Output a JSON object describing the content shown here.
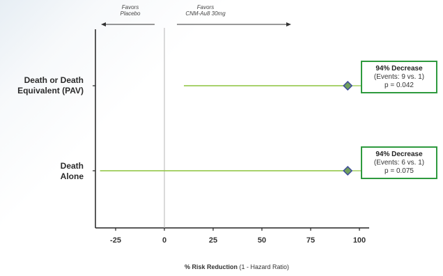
{
  "chart_data": {
    "type": "scatter",
    "title": "",
    "xlabel_bold": "% Risk Reduction",
    "xlabel_rest": " (1 - Hazard Ratio)",
    "xlim": [
      -35,
      108
    ],
    "xticks": [
      -25,
      0,
      25,
      50,
      75,
      100
    ],
    "xtick_labels": [
      "-25",
      "0",
      "25",
      "50",
      "75",
      "100"
    ],
    "reference_line_x": 0,
    "favors_left": [
      "Favors",
      "Placebo"
    ],
    "favors_right": [
      "Favors",
      "CNM-Au8 30mg"
    ],
    "rows": [
      {
        "label_lines": [
          "Death or Death",
          "Equivalent (PAV)"
        ],
        "point": 94,
        "ci_low": 10,
        "ci_high": 94,
        "box": {
          "headline": "94% Decrease",
          "events": "(Events: 9 vs. 1)",
          "p": "p = 0.042"
        }
      },
      {
        "label_lines": [
          "Death",
          "Alone"
        ],
        "point": 94,
        "ci_low": -33,
        "ci_high": 94,
        "box": {
          "headline": "94% Decrease",
          "events": "(Events: 6 vs. 1)",
          "p": "p = 0.075"
        }
      }
    ],
    "colors": {
      "ci_line": "#8cc43c",
      "marker_fill": "#6f9e5c",
      "marker_stroke": "#3d4b9a",
      "box_border": "#2e9a3e",
      "axis": "#222222"
    }
  }
}
